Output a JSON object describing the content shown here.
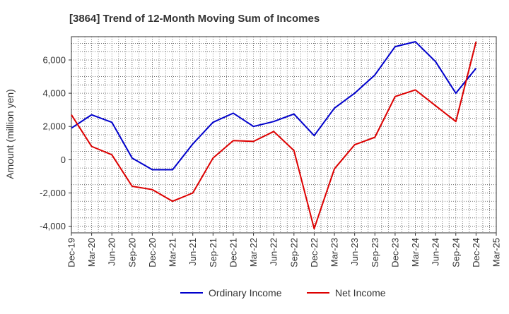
{
  "chart_data": {
    "type": "line",
    "title": "[3864]  Trend of 12-Month Moving Sum of Incomes",
    "xlabel": "",
    "ylabel": "Amount (million yen)",
    "ylim": [
      -4400,
      7400
    ],
    "yticks": [
      -4000,
      -2000,
      0,
      2000,
      4000,
      6000
    ],
    "ytick_labels": [
      "-4,000",
      "-2,000",
      "0",
      "2,000",
      "4,000",
      "6,000"
    ],
    "categories": [
      "Dec-19",
      "Mar-20",
      "Jun-20",
      "Sep-20",
      "Dec-20",
      "Mar-21",
      "Jun-21",
      "Sep-21",
      "Dec-21",
      "Mar-22",
      "Jun-22",
      "Sep-22",
      "Dec-22",
      "Mar-23",
      "Jun-23",
      "Sep-23",
      "Dec-23",
      "Mar-24",
      "Jun-24",
      "Sep-24",
      "Dec-24",
      "Mar-25"
    ],
    "grid": true,
    "legend_position": "bottom-center",
    "series": [
      {
        "name": "Ordinary Income",
        "color": "#0000cc",
        "values": [
          1900,
          2700,
          2250,
          100,
          -600,
          -600,
          950,
          2250,
          2800,
          2000,
          2300,
          2750,
          1450,
          3100,
          4000,
          5100,
          6800,
          7100,
          5900,
          4000,
          5500,
          null
        ]
      },
      {
        "name": "Net Income",
        "color": "#dd0000",
        "values": [
          2700,
          800,
          300,
          -1600,
          -1800,
          -2500,
          -2000,
          100,
          1150,
          1100,
          1700,
          550,
          -4150,
          -550,
          900,
          1350,
          3800,
          4200,
          3250,
          2300,
          7100,
          null
        ]
      }
    ]
  }
}
